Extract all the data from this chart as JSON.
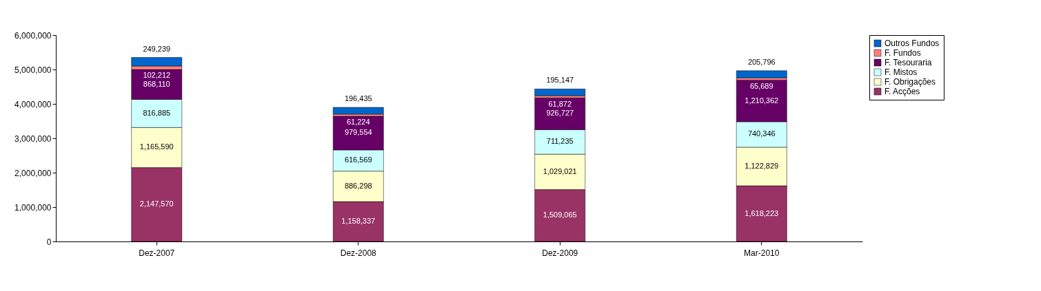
{
  "chart_data": {
    "type": "bar",
    "stacked": true,
    "categories": [
      "Dez-2007",
      "Dez-2008",
      "Dez-2009",
      "Mar-2010"
    ],
    "series": [
      {
        "name": "F. Acções",
        "color": "#993366",
        "values": [
          2147570,
          1158337,
          1509065,
          1618223
        ],
        "value_labels": [
          "2,147,570",
          "1,158,337",
          "1,509,065",
          "1,618,223"
        ]
      },
      {
        "name": "F. Obrigações",
        "color": "#ffffcc",
        "values": [
          1165590,
          886298,
          1029021,
          1122829
        ],
        "value_labels": [
          "1,165,590",
          "886,298",
          "1,029,021",
          "1,122,829"
        ]
      },
      {
        "name": "F. Mistos",
        "color": "#ccffff",
        "values": [
          816885,
          616569,
          711235,
          740346
        ],
        "value_labels": [
          "816,885",
          "616,569",
          "711,235",
          "740,346"
        ]
      },
      {
        "name": "F. Tesouraria",
        "color": "#660066",
        "values": [
          868110,
          979554,
          926727,
          1210362
        ],
        "value_labels": [
          "868,110",
          "979,554",
          "926,727",
          "1,210,362"
        ]
      },
      {
        "name": "F. Fundos",
        "color": "#ff8080",
        "values": [
          102212,
          61224,
          61872,
          65689
        ],
        "value_labels": [
          "102,212",
          "61,224",
          "61,872",
          "65,689"
        ]
      },
      {
        "name": "Outros Fundos",
        "color": "#0066cc",
        "values": [
          249239,
          196435,
          195147,
          205796
        ],
        "value_labels": [
          "249,239",
          "196,435",
          "195,147",
          "205,796"
        ]
      }
    ],
    "ylim": [
      0,
      6000000
    ],
    "yticks": [
      0,
      {
        "value": 1000000,
        "label": "1,000,000"
      },
      {
        "value": 2000000,
        "label": "2,000,000"
      },
      {
        "value": 3000000,
        "label": "3,000,000"
      },
      {
        "value": 4000000,
        "label": "4,000,000"
      },
      {
        "value": 5000000,
        "label": "5,000,000"
      },
      {
        "value": 6000000,
        "label": "6,000,000"
      }
    ],
    "grid": false,
    "legend": "right"
  }
}
